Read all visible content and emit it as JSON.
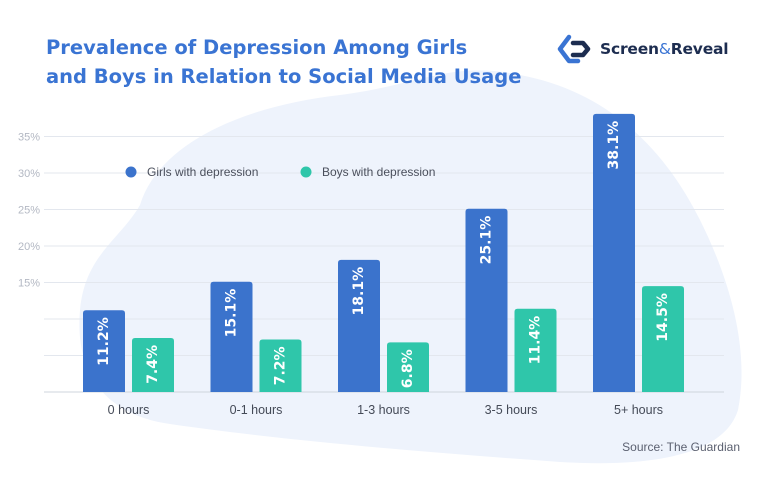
{
  "header": {
    "title_line1": "Prevalence of Depression Among Girls",
    "title_line2": "and Boys in Relation to Social Media Usage"
  },
  "brand": {
    "name_part1": "Screen",
    "ampersand": "&",
    "name_part2": "Reveal",
    "logo_icon": "screen-and-reveal-logo-icon"
  },
  "footer": {
    "source": "Source: The Guardian"
  },
  "colors": {
    "title": "#3a74d3",
    "girls": "#3b73cc",
    "boys": "#2fc6aa",
    "background_blob": "#eef3fc"
  },
  "chart_data": {
    "type": "bar",
    "title": "Prevalence of Depression Among Girls and Boys in Relation to Social Media Usage",
    "categories": [
      "0 hours",
      "0-1 hours",
      "1-3 hours",
      "3-5 hours",
      "5+ hours"
    ],
    "series": [
      {
        "name": "Girls with depression",
        "values": [
          11.2,
          15.1,
          18.1,
          25.1,
          38.1
        ],
        "labels": [
          "11.2%",
          "15.1%",
          "18.1%",
          "25.1%",
          "38.1%"
        ],
        "color": "#3b73cc"
      },
      {
        "name": "Boys with depression",
        "values": [
          7.4,
          7.2,
          6.8,
          11.4,
          14.5
        ],
        "labels": [
          "7.4%",
          "7.2%",
          "6.8%",
          "11.4%",
          "14.5%"
        ],
        "color": "#2fc6aa"
      }
    ],
    "y_ticks": [
      15,
      20,
      25,
      30,
      35
    ],
    "y_tick_labels": [
      "15%",
      "20%",
      "25%",
      "30%",
      "35%"
    ],
    "ylim": [
      0,
      38.1
    ],
    "grid": true,
    "legend_position": "top-left",
    "xlabel": "",
    "ylabel": ""
  }
}
